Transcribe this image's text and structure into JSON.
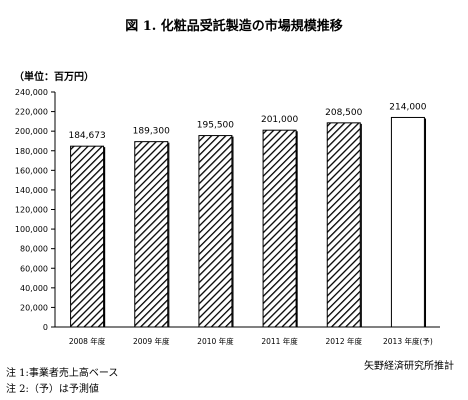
{
  "title": "図 1. 化粧品受託製造の市場規模推移",
  "unit_label": "（単位：百万円）",
  "notes": [
    "注 1:事業者売上高ベース",
    "注 2:（予）は予測値"
  ],
  "source": "矢野経済研究所推計",
  "chart_data": {
    "type": "bar",
    "categories": [
      "2008 年度",
      "2009 年度",
      "2010 年度",
      "2011 年度",
      "2012 年度",
      "2013 年度(予)"
    ],
    "values": [
      184673,
      189300,
      195500,
      201000,
      208500,
      214000
    ],
    "data_labels": [
      "184,673",
      "189,300",
      "195,500",
      "201,000",
      "208,500",
      "214,000"
    ],
    "forecast": [
      false,
      false,
      false,
      false,
      false,
      true
    ],
    "ylim": [
      0,
      240000
    ],
    "yticks": [
      0,
      20000,
      40000,
      60000,
      80000,
      100000,
      120000,
      140000,
      160000,
      180000,
      200000,
      220000,
      240000
    ],
    "ytick_labels": [
      "0",
      "20,000",
      "40,000",
      "60,000",
      "80,000",
      "100,000",
      "120,000",
      "140,000",
      "160,000",
      "180,000",
      "200,000",
      "220,000",
      "240,000"
    ],
    "title": "",
    "xlabel": "",
    "ylabel": "",
    "grid": false,
    "bar_style_actual": "diagonal-hatch",
    "bar_style_forecast": "white",
    "colors": {
      "bar_stroke": "#000000",
      "hatch": "#000000",
      "fill_forecast": "#ffffff"
    }
  }
}
